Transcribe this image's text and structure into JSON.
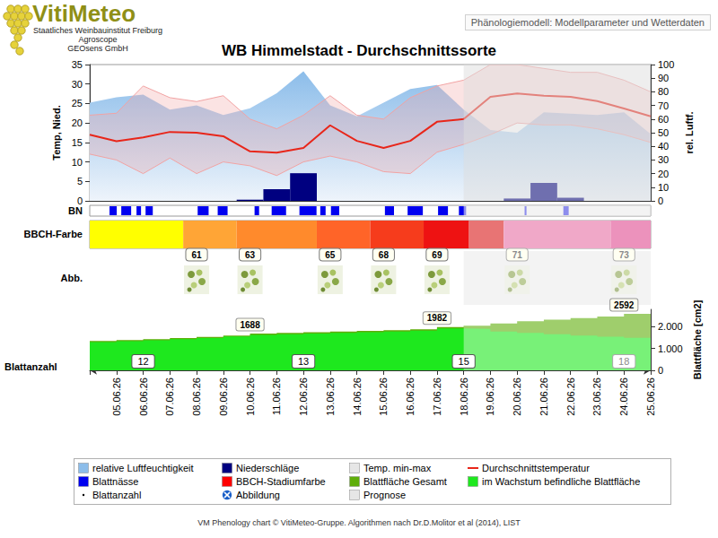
{
  "header": {
    "logo": "VitiMeteo",
    "institutions": [
      "Staatliches Weinbauinstitut Freiburg",
      "Agroscope",
      "GEOsens GmbH"
    ],
    "subtitle": "Phänologiemodell: Modellparameter und Wetterdaten"
  },
  "chart_data": {
    "type": "line",
    "title": "WB Himmelstadt - Durchschnittssorte",
    "categories": [
      null,
      "05.06.26",
      "06.06.26",
      "07.06.26",
      "08.06.26",
      "09.06.26",
      "10.06.26",
      "11.06.26",
      "12.06.26",
      "13.06.26",
      "14.06.26",
      "15.06.26",
      "16.06.26",
      "17.06.26",
      "18.06.26",
      "19.06.26",
      "20.06.26",
      "21.06.26",
      "22.06.26",
      "23.06.26",
      "24.06.26",
      "25.06.26"
    ],
    "prognose_start": "18.06.26",
    "ylabel": "Temp, Nied.",
    "y2label": "rel. Luftf.",
    "ylim": [
      0,
      35
    ],
    "yticks": [
      0,
      5,
      10,
      15,
      20,
      25,
      30,
      35
    ],
    "y2lim": [
      0,
      100
    ],
    "y2ticks": [
      0,
      10,
      20,
      30,
      40,
      50,
      60,
      70,
      80,
      90,
      100
    ],
    "grid": false,
    "series": [
      {
        "name": "relative Luftfeuchtigkeit",
        "type": "area",
        "axis": "y2",
        "color": "#8cbdea",
        "values": [
          72,
          76,
          78,
          67,
          70,
          63,
          68,
          79,
          95,
          70,
          62,
          72,
          82,
          85,
          67,
          52,
          50,
          65,
          64,
          63,
          65,
          49
        ]
      },
      {
        "name": "Niederschläge",
        "type": "bar",
        "color": "#000080",
        "values": [
          0,
          0,
          0,
          0,
          0,
          0,
          0.3,
          3,
          7.1,
          0,
          0,
          0,
          0,
          0,
          0,
          0,
          0.6,
          4.6,
          0.8,
          0,
          0,
          0
        ]
      },
      {
        "name": "Temp. min-max",
        "type": "band",
        "color": "#f2a3a3",
        "min": [
          12,
          10.5,
          7,
          11,
          7,
          10,
          9,
          6.5,
          10,
          11.5,
          10,
          7.5,
          7,
          12.5,
          14.5,
          17,
          20,
          19.5,
          19.5,
          18.5,
          17,
          15
        ],
        "max": [
          22,
          22.5,
          29.5,
          26.5,
          25.5,
          27,
          21,
          18.5,
          22,
          27,
          22,
          21,
          26.5,
          29.5,
          31,
          35,
          35,
          34,
          33,
          33,
          31,
          28
        ]
      },
      {
        "name": "Durchschnittstemperatur",
        "type": "line",
        "color": "#e8261a",
        "values": [
          17,
          15.3,
          16.3,
          17.7,
          17.5,
          16.6,
          12.7,
          12.4,
          13.6,
          19.4,
          15.4,
          13.6,
          15.4,
          20.3,
          21,
          26.7,
          27.6,
          27,
          26.7,
          25.6,
          23.7,
          21.7
        ]
      }
    ],
    "leaf_wetness": {
      "label": "BN",
      "color": "#0000f0",
      "intervals": [
        [
          0.74,
          1.01
        ],
        [
          1.18,
          1.55
        ],
        [
          1.75,
          1.92
        ],
        [
          2.09,
          2.36
        ],
        [
          4.04,
          4.45
        ],
        [
          4.79,
          5.16
        ],
        [
          6.17,
          6.34
        ],
        [
          6.81,
          7.35
        ],
        [
          7.85,
          8.49
        ],
        [
          8.63,
          8.83
        ],
        [
          9.03,
          9.34
        ],
        [
          11.05,
          11.39
        ],
        [
          11.9,
          12.47
        ],
        [
          13.04,
          13.41
        ],
        [
          13.82,
          14.09
        ],
        [
          16.28,
          16.35
        ],
        [
          17.73,
          17.93
        ]
      ]
    },
    "bbch": {
      "label": "BBCH-Farbe",
      "segments": [
        {
          "from": 0,
          "to": 3.5,
          "color": "#ffff00"
        },
        {
          "from": 3.5,
          "to": 5.5,
          "color": "#ffa536"
        },
        {
          "from": 5.5,
          "to": 8.5,
          "color": "#ff8a2c"
        },
        {
          "from": 8.5,
          "to": 10.5,
          "color": "#ff6428"
        },
        {
          "from": 10.5,
          "to": 12.5,
          "color": "#f63c1c"
        },
        {
          "from": 12.5,
          "to": 14.2,
          "color": "#ee1212"
        },
        {
          "from": 14.2,
          "to": 15.5,
          "color": "#e87474"
        },
        {
          "from": 15.5,
          "to": 19.5,
          "color": "#f0a8c8"
        },
        {
          "from": 19.5,
          "to": 21,
          "color": "#ec92bc"
        }
      ],
      "stages": [
        {
          "x": "08.06.26",
          "stage": 61
        },
        {
          "x": "10.06.26",
          "stage": 63
        },
        {
          "x": "13.06.26",
          "stage": 65
        },
        {
          "x": "15.06.26",
          "stage": 68
        },
        {
          "x": "17.06.26",
          "stage": 69
        },
        {
          "x": "20.06.26",
          "stage": 71
        },
        {
          "x": "24.06.26",
          "stage": 73
        }
      ]
    },
    "images": {
      "label": "Abb."
    },
    "leaf_area": {
      "ylabel": "Blattfläche [cm2]",
      "ylim": [
        0,
        2800
      ],
      "yticks": [
        0,
        {
          "value": 1000,
          "label": "1.000"
        },
        {
          "value": 2000,
          "label": "2.000"
        }
      ],
      "series": [
        {
          "name": "Blattfläche Gesamt",
          "color": "#5fae0a",
          "values": [
            1350,
            1390,
            1430,
            1480,
            1530,
            1600,
            1688,
            1720,
            1750,
            1780,
            1810,
            1840,
            1880,
            1982,
            2050,
            2150,
            2250,
            2330,
            2400,
            2470,
            2592,
            2620
          ]
        },
        {
          "name": "im Wachstum befindliche Blattfläche",
          "color": "#1ee81e",
          "values": [
            1300,
            1340,
            1380,
            1430,
            1480,
            1550,
            1630,
            1660,
            1690,
            1720,
            1750,
            1780,
            1820,
            1920,
            1900,
            1780,
            1720,
            1660,
            1600,
            1540,
            1490,
            1450
          ]
        }
      ],
      "annotations": [
        {
          "x": "10.06.26",
          "value": 1688
        },
        {
          "x": "17.06.26",
          "value": 1982
        },
        {
          "x": "24.06.26",
          "value": 2592
        }
      ]
    },
    "leaf_count": {
      "label": "Blattanzahl",
      "points": [
        {
          "x": "06.06.26",
          "value": 12
        },
        {
          "x": "12.06.26",
          "value": 13
        },
        {
          "x": "18.06.26",
          "value": 15
        },
        {
          "x": "24.06.26",
          "value": 18
        }
      ]
    }
  },
  "legend_items": [
    {
      "name": "relative Luftfeuchtigkeit",
      "color": "#8cbdea",
      "marker": "square"
    },
    {
      "name": "Niederschläge",
      "color": "#000080",
      "marker": "square"
    },
    {
      "name": "Temp. min-max",
      "color": "#e6e6e6",
      "marker": "square"
    },
    {
      "name": "Durchschnittstemperatur",
      "color": "#e8261a",
      "marker": "line"
    },
    {
      "name": "Blattnässe",
      "color": "#0000f0",
      "marker": "square"
    },
    {
      "name": "BBCH-Stadiumfarbe",
      "color": "#ff0000",
      "marker": "square"
    },
    {
      "name": "Blattfläche Gesamt",
      "color": "#5fae0a",
      "marker": "square"
    },
    {
      "name": "im Wachstum befindliche Blattfläche",
      "color": "#1ee81e",
      "marker": "square"
    },
    {
      "name": "Blattanzahl",
      "color": "#000000",
      "marker": "dot"
    },
    {
      "name": "Abbildung",
      "color": "#1a5fc8",
      "marker": "icon"
    },
    {
      "name": "Prognose",
      "color": "#e6e6e6",
      "marker": "square"
    }
  ],
  "footer": "VM Phenology chart © VitiMeteo-Gruppe. Algorithmen nach Dr.D.Molitor et al (2014), LIST"
}
